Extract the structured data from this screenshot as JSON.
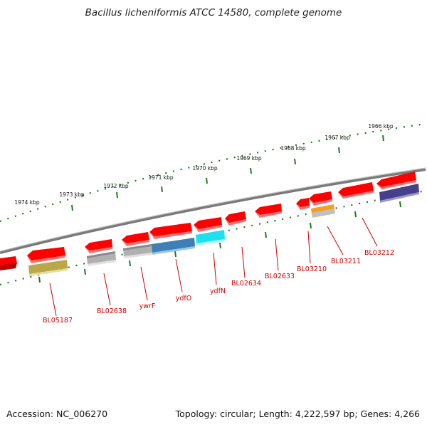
{
  "title": "Bacillus licheniformis ATCC 14580, complete genome",
  "footer": {
    "accession": "Accession: NC_006270",
    "topology": "Topology: circular; Length: 4,222,597 bp; Genes: 4,266"
  },
  "scale_labels": [
    "1974 kbp",
    "1973 kbp",
    "1972 kbp",
    "1971 kbp",
    "1970 kbp",
    "1969 kbp",
    "1968 kbp",
    "1967 kbp",
    "1966 kbp"
  ],
  "gene_labels": [
    "BL05187",
    "BL02638",
    "ywrF",
    "ydfO",
    "ydfN",
    "BL02634",
    "BL02633",
    "BL03210",
    "BL03211",
    "BL03212"
  ],
  "colors": {
    "backbone": "#7a7a7a",
    "scale_dots": "#1f7a1f",
    "gene_red": "#ff0000",
    "label_red": "#cc0000",
    "cog_olive": "#b8a84a",
    "cog_gray": "#b0b0b0",
    "cog_steelblue": "#3f7fb7",
    "cog_cyan": "#1fe0ef",
    "cog_orange": "#f5a020",
    "cog_navy": "#46408a"
  }
}
